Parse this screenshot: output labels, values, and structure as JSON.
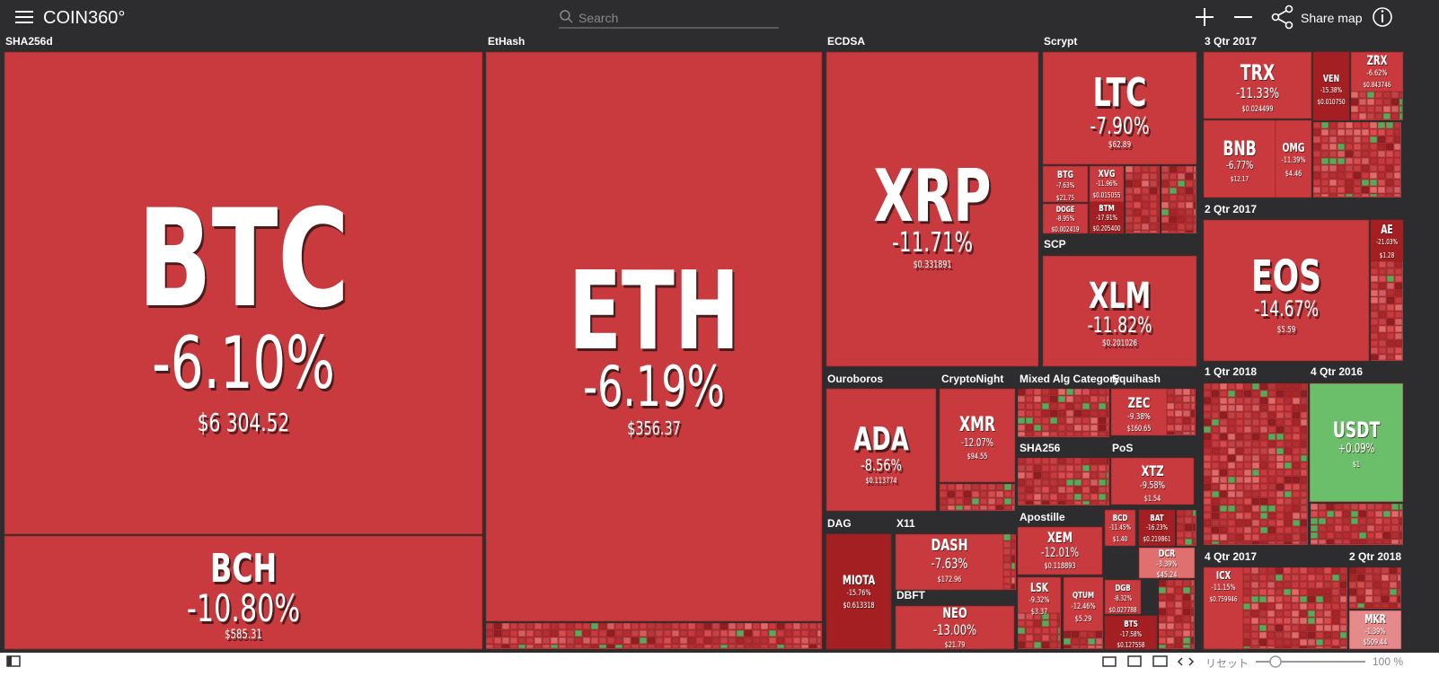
{
  "header": {
    "logo": "COIN360°",
    "search": "Search",
    "share": "Share map"
  },
  "groups": [
    {
      "label": "SHA256d"
    },
    {
      "label": "EtHash"
    },
    {
      "label": "ECDSA"
    },
    {
      "label": "Scrypt"
    },
    {
      "label": "3 Qtr 2017"
    },
    {
      "label": "SCP"
    },
    {
      "label": "2 Qtr 2017"
    },
    {
      "label": "Ouroboros"
    },
    {
      "label": "CryptoNight"
    },
    {
      "label": "Mixed Alg Category"
    },
    {
      "label": "Equihash"
    },
    {
      "label": "SHA256"
    },
    {
      "label": "PoS"
    },
    {
      "label": "1 Qtr 2018"
    },
    {
      "label": "4 Qtr 2016"
    },
    {
      "label": "DAG"
    },
    {
      "label": "X11"
    },
    {
      "label": "DBFT"
    },
    {
      "label": "Apostille"
    },
    {
      "label": "4 Qtr 2017"
    },
    {
      "label": "2 Qtr 2018"
    }
  ],
  "tiles": [
    {
      "symbol": "BTC",
      "change": "-6.10%",
      "price": "$6 304.52"
    },
    {
      "symbol": "BCH",
      "change": "-10.80%",
      "price": "$585.31"
    },
    {
      "symbol": "ETH",
      "change": "-6.19%",
      "price": "$356.37"
    },
    {
      "symbol": "XRP",
      "change": "-11.71%",
      "price": "$0.331891"
    },
    {
      "symbol": "LTC",
      "change": "-7.90%",
      "price": "$62.89"
    },
    {
      "symbol": "XLM",
      "change": "-11.82%",
      "price": "$0.201026"
    },
    {
      "symbol": "TRX",
      "change": "-11.33%",
      "price": "$0.024499"
    },
    {
      "symbol": "BNB",
      "change": "-6.77%",
      "price": "$12.17"
    },
    {
      "symbol": "OMG",
      "change": "-11.39%",
      "price": "$4.46"
    },
    {
      "symbol": "VEN",
      "change": "-15.38%",
      "price": "$0.010750"
    },
    {
      "symbol": "ZRX",
      "change": "-6.62%",
      "price": "$0.843746"
    },
    {
      "symbol": "EOS",
      "change": "-14.67%",
      "price": "$5.59"
    },
    {
      "symbol": "AE",
      "change": "-21.03%",
      "price": "$1.28"
    },
    {
      "symbol": "ADA",
      "change": "-8.56%",
      "price": "$0.113774"
    },
    {
      "symbol": "XMR",
      "change": "-12.07%",
      "price": "$94.55"
    },
    {
      "symbol": "ZEC",
      "change": "-9.38%",
      "price": "$160.65"
    },
    {
      "symbol": "XTZ",
      "change": "-9.58%",
      "price": "$1.54"
    },
    {
      "symbol": "USDT",
      "change": "+0.09%",
      "price": "$1"
    },
    {
      "symbol": "MIOTA",
      "change": "-15.76%",
      "price": "$0.613318"
    },
    {
      "symbol": "DASH",
      "change": "-7.63%",
      "price": "$172.96"
    },
    {
      "symbol": "NEO",
      "change": "-13.00%",
      "price": "$21.79"
    },
    {
      "symbol": "XEM",
      "change": "-12.01%",
      "price": "$0.118893"
    },
    {
      "symbol": "LSK",
      "change": "-9.32%",
      "price": "$3.37"
    },
    {
      "symbol": "QTUM",
      "change": "-12.46%",
      "price": "$5.29"
    },
    {
      "symbol": "BCD",
      "change": "-11.45%",
      "price": "$1.40"
    },
    {
      "symbol": "BAT",
      "change": "-16.23%",
      "price": "$0.219861"
    },
    {
      "symbol": "DCR",
      "change": "-3.39%",
      "price": "$45.24"
    },
    {
      "symbol": "DGB",
      "change": "-8.32%",
      "price": "$0.027788"
    },
    {
      "symbol": "BTS",
      "change": "-17.58%",
      "price": "$0.127558"
    },
    {
      "symbol": "BTG",
      "change": "-7.63%",
      "price": "$21.75"
    },
    {
      "symbol": "XVG",
      "change": "-11.96%",
      "price": "$0.015055"
    },
    {
      "symbol": "BTM",
      "change": "-17.91%",
      "price": "$0.205400"
    },
    {
      "symbol": "DOGE",
      "change": "-8.95%",
      "price": "$0.002419"
    },
    {
      "symbol": "ICX",
      "change": "-11.15%",
      "price": "$0.759946"
    },
    {
      "symbol": "MKR",
      "change": "-1.39%",
      "price": "$509.44"
    }
  ],
  "footer": {
    "reset": "リセット",
    "zoom": "100 %"
  }
}
